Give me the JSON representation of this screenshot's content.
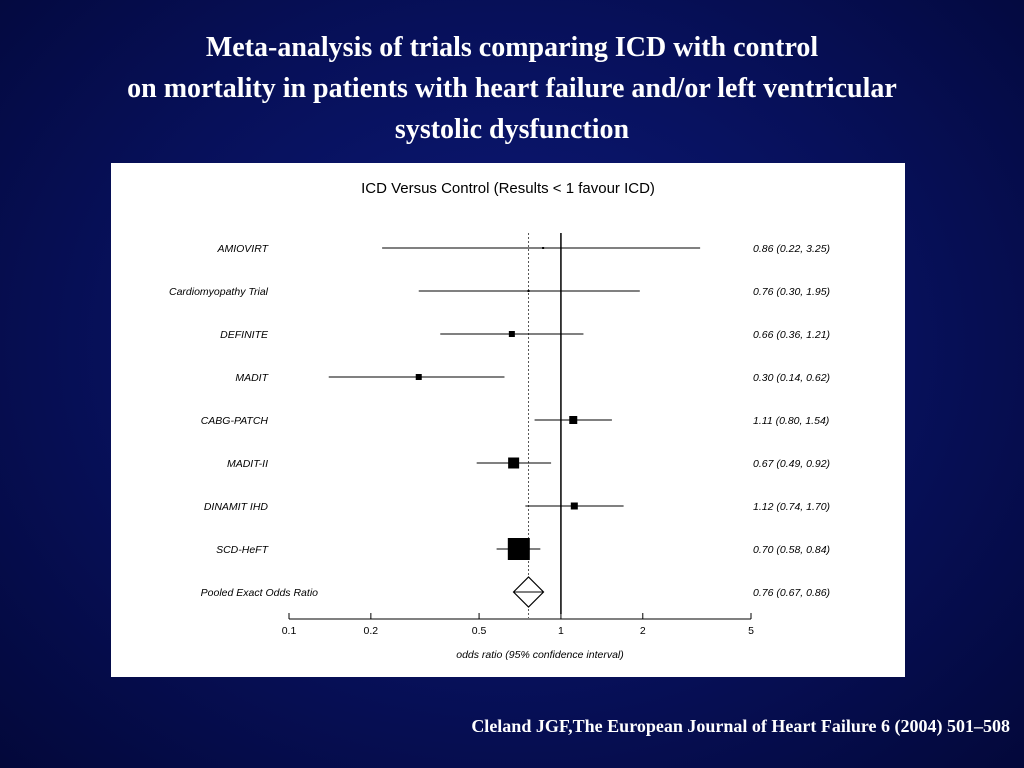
{
  "slide": {
    "title_lines": [
      "Meta-analysis of  trials comparing ICD  with control",
      "on mortality in patients with heart failure and/or left ventricular",
      "systolic dysfunction"
    ],
    "citation": "Cleland JGF,The European Journal of Heart Failure 6 (2004) 501–508"
  },
  "colors": {
    "background": "#07105a",
    "text": "#ffffff",
    "panel": "#ffffff",
    "ink": "#000000"
  },
  "chart_data": {
    "type": "forest",
    "title": "ICD Versus Control (Results < 1 favour ICD)",
    "xlabel": "odds ratio (95% confidence interval)",
    "x_scale": "log",
    "xlim": [
      0.1,
      5
    ],
    "xticks": [
      0.1,
      0.2,
      0.5,
      1,
      2,
      5
    ],
    "xtick_labels": [
      "0.1",
      "0.2",
      "0.5",
      "1",
      "2",
      "5"
    ],
    "reference_line": 1,
    "pooled_line": 0.76,
    "studies": [
      {
        "name": "AMIOVIRT",
        "or": 0.86,
        "lo": 0.22,
        "hi": 3.25,
        "label": "0.86 (0.22, 3.25)"
      },
      {
        "name": "Cardiomyopathy Trial",
        "or": 0.76,
        "lo": 0.3,
        "hi": 1.95,
        "label": "0.76 (0.30, 1.95)"
      },
      {
        "name": "DEFINITE",
        "or": 0.66,
        "lo": 0.36,
        "hi": 1.21,
        "label": "0.66 (0.36, 1.21)"
      },
      {
        "name": "MADIT",
        "or": 0.3,
        "lo": 0.14,
        "hi": 0.62,
        "label": "0.30 (0.14, 0.62)"
      },
      {
        "name": "CABG-PATCH",
        "or": 1.11,
        "lo": 0.8,
        "hi": 1.54,
        "label": "1.11 (0.80, 1.54)"
      },
      {
        "name": "MADIT-II",
        "or": 0.67,
        "lo": 0.49,
        "hi": 0.92,
        "label": "0.67 (0.49, 0.92)"
      },
      {
        "name": "DINAMIT IHD",
        "or": 1.12,
        "lo": 0.74,
        "hi": 1.7,
        "label": "1.12 (0.74, 1.70)"
      },
      {
        "name": "SCD-HeFT",
        "or": 0.7,
        "lo": 0.58,
        "hi": 0.84,
        "label": "0.70 (0.58, 0.84)"
      }
    ],
    "pooled": {
      "name": "Pooled Exact Odds Ratio",
      "or": 0.76,
      "lo": 0.67,
      "hi": 0.86,
      "label": "0.76 (0.67, 0.86)"
    }
  }
}
